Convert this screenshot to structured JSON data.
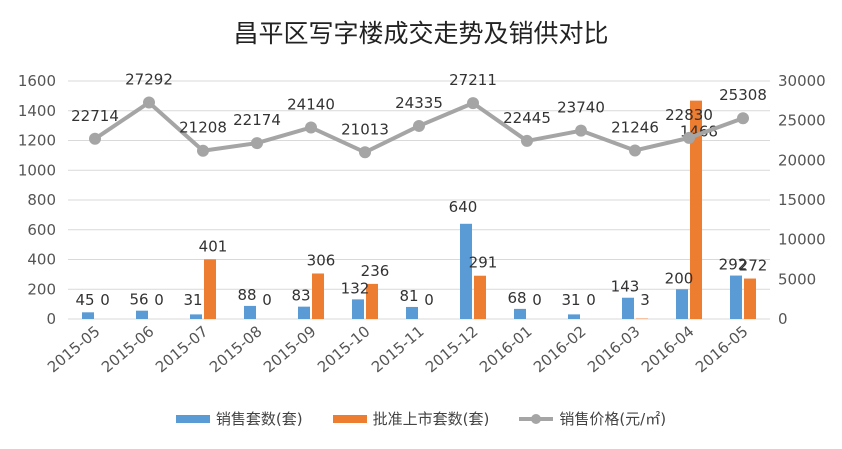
{
  "chart_data": {
    "type": "bar",
    "title": "昌平区写字楼成交走势及销供对比",
    "categories": [
      "2015-05",
      "2015-06",
      "2015-07",
      "2015-08",
      "2015-09",
      "2015-10",
      "2015-11",
      "2015-12",
      "2016-01",
      "2016-02",
      "2016-03",
      "2016-04",
      "2016-05"
    ],
    "series": [
      {
        "name": "销售套数(套)",
        "type": "bar",
        "axis": "left",
        "color": "#5b9bd5",
        "values": [
          45,
          56,
          31,
          88,
          83,
          132,
          81,
          640,
          68,
          31,
          143,
          200,
          292
        ]
      },
      {
        "name": "批准上市套数(套)",
        "type": "bar",
        "axis": "left",
        "color": "#ed7d31",
        "values": [
          0,
          0,
          401,
          0,
          306,
          236,
          0,
          291,
          0,
          0,
          3,
          1468,
          272
        ]
      },
      {
        "name": "销售价格(元/㎡)",
        "type": "line",
        "axis": "right",
        "color": "#a5a5a5",
        "values": [
          22714,
          27292,
          21208,
          22174,
          24140,
          21013,
          24335,
          27211,
          22445,
          23740,
          21246,
          22830,
          25308
        ]
      }
    ],
    "y_left": {
      "min": 0,
      "max": 1600,
      "ticks": [
        0,
        200,
        400,
        600,
        800,
        1000,
        1200,
        1400,
        1600
      ]
    },
    "y_right": {
      "min": 0,
      "max": 30000,
      "ticks": [
        0,
        5000,
        10000,
        15000,
        20000,
        25000,
        30000
      ]
    },
    "grid": true,
    "legend_position": "bottom"
  }
}
